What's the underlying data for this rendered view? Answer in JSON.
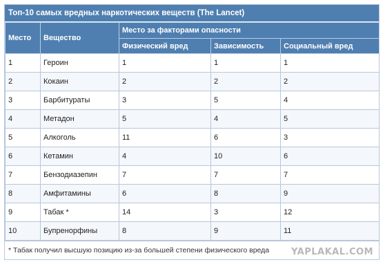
{
  "title": "Топ-10 самых вредных наркотических веществ (The Lancet)",
  "headers": {
    "place": "Место",
    "substance": "Вещество",
    "group": "Место за факторами опасности",
    "physical": "Физический вред",
    "dependence": "Зависимость",
    "social": "Социальный вред"
  },
  "rows": [
    {
      "place": "1",
      "substance": "Героин",
      "physical": "1",
      "dependence": "1",
      "social": "1"
    },
    {
      "place": "2",
      "substance": "Кокаин",
      "physical": "2",
      "dependence": "2",
      "social": "2"
    },
    {
      "place": "3",
      "substance": "Барбитураты",
      "physical": "3",
      "dependence": "5",
      "social": "4"
    },
    {
      "place": "4",
      "substance": "Метадон",
      "physical": "5",
      "dependence": "4",
      "social": "5"
    },
    {
      "place": "5",
      "substance": "Алкоголь",
      "physical": "11",
      "dependence": "6",
      "social": "3"
    },
    {
      "place": "6",
      "substance": "Кетамин",
      "physical": "4",
      "dependence": "10",
      "social": "6"
    },
    {
      "place": "7",
      "substance": "Бензодиазепин",
      "physical": "7",
      "dependence": "7",
      "social": "7"
    },
    {
      "place": "8",
      "substance": "Амфитамины",
      "physical": "6",
      "dependence": "8",
      "social": "9"
    },
    {
      "place": "9",
      "substance": "Табак *",
      "physical": "14",
      "dependence": "3",
      "social": "12"
    },
    {
      "place": "10",
      "substance": "Бупренорфины",
      "physical": "8",
      "dependence": "9",
      "social": "11"
    }
  ],
  "footnote": "* Табак получил высшую позицию из-за большей степени физического вреда",
  "watermark": "YAPLAKAL.COM",
  "colors": {
    "header_bg": "#4f7fb0",
    "header_text": "#ffffff",
    "border": "#b8c7da"
  }
}
